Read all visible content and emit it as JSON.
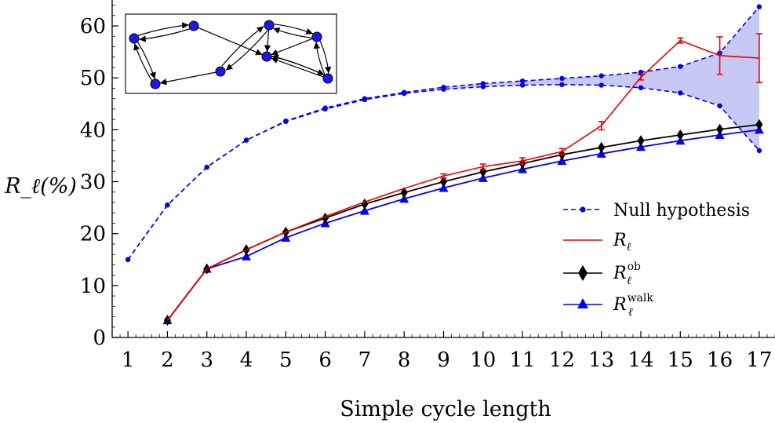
{
  "chart_data": {
    "type": "line",
    "xlabel": "Simple cycle length",
    "ylabel": "R_ℓ(%)",
    "xlim": [
      0.6,
      17.4
    ],
    "ylim": [
      0,
      65
    ],
    "x_ticks": [
      1,
      2,
      3,
      4,
      5,
      6,
      7,
      8,
      9,
      10,
      11,
      12,
      13,
      14,
      15,
      16,
      17
    ],
    "y_ticks": [
      0,
      10,
      20,
      30,
      40,
      50,
      60
    ],
    "legend_position": "right",
    "grid": false,
    "series": [
      {
        "name": "Null hypothesis",
        "style": "dashed",
        "marker": "dot",
        "color": "#0000ee",
        "band_upper": {
          "x": [
            1,
            2,
            3,
            4,
            5,
            6,
            7,
            8,
            9,
            10,
            11,
            12,
            13,
            14,
            15,
            16,
            17
          ],
          "y": [
            15.0,
            25.5,
            32.8,
            38.0,
            41.7,
            44.2,
            46.0,
            47.2,
            48.2,
            48.9,
            49.4,
            49.9,
            50.4,
            51.1,
            52.2,
            54.8,
            63.7
          ]
        },
        "band_lower": {
          "x": [
            1,
            2,
            3,
            4,
            5,
            6,
            7,
            8,
            9,
            10,
            11,
            12,
            13,
            14,
            15,
            16,
            17
          ],
          "y": [
            15.0,
            25.5,
            32.8,
            38.0,
            41.6,
            44.0,
            45.8,
            47.0,
            47.8,
            48.3,
            48.6,
            48.7,
            48.6,
            48.1,
            47.1,
            44.6,
            36.0
          ]
        },
        "fill": "#c8c8f5"
      },
      {
        "name": "R_ℓ",
        "color": "#ee0000",
        "marker": "none",
        "x": [
          2,
          3,
          4,
          5,
          6,
          7,
          8,
          9,
          10,
          11,
          12,
          13,
          14,
          15,
          16,
          17
        ],
        "y": [
          3.3,
          13.2,
          16.9,
          20.3,
          23.3,
          26.1,
          28.7,
          31.1,
          32.9,
          34.0,
          35.8,
          40.8,
          50.1,
          57.2,
          54.3,
          53.8
        ],
        "error": [
          0,
          0,
          0,
          0,
          0,
          0,
          0,
          0.4,
          0.5,
          0.6,
          0.6,
          0.8,
          0.5,
          0.5,
          3.6,
          4.7
        ]
      },
      {
        "name": "R_ℓ^ob",
        "color": "#000000",
        "marker": "diamond",
        "x": [
          2,
          3,
          4,
          5,
          6,
          7,
          8,
          9,
          10,
          11,
          12,
          13,
          14,
          15,
          16,
          17
        ],
        "y": [
          3.3,
          13.2,
          16.9,
          20.3,
          23.0,
          25.7,
          27.9,
          30.0,
          31.9,
          33.5,
          35.2,
          36.6,
          37.9,
          39.0,
          40.1,
          41.0
        ]
      },
      {
        "name": "R_ℓ^walk",
        "color": "#0000ee",
        "marker": "triangle",
        "x": [
          2,
          3,
          4,
          5,
          6,
          7,
          8,
          9,
          10,
          11,
          12,
          13,
          14,
          15,
          16,
          17
        ],
        "y": [
          3.3,
          13.2,
          15.6,
          19.2,
          22.0,
          24.4,
          26.7,
          28.8,
          30.7,
          32.4,
          34.0,
          35.4,
          36.7,
          37.9,
          39.0,
          40.0
        ]
      }
    ],
    "inset": {
      "type": "directed-graph",
      "node_color": "#1a1aee",
      "nodes": [
        "n1",
        "n2",
        "n3",
        "n4",
        "n5",
        "n6",
        "n7",
        "n8",
        "n9"
      ],
      "edges": [
        [
          "n1",
          "n2"
        ],
        [
          "n2",
          "n1"
        ],
        [
          "n1",
          "n3"
        ],
        [
          "n3",
          "n1"
        ],
        [
          "n4",
          "n3"
        ],
        [
          "n4",
          "n6"
        ],
        [
          "n6",
          "n4"
        ],
        [
          "n2",
          "n7"
        ],
        [
          "n6",
          "n7"
        ],
        [
          "n8",
          "n7"
        ],
        [
          "n7",
          "n8"
        ],
        [
          "n6",
          "n8"
        ],
        [
          "n8",
          "n6"
        ],
        [
          "n8",
          "n9"
        ],
        [
          "n9",
          "n8"
        ],
        [
          "n9",
          "n7"
        ],
        [
          "n7",
          "n9"
        ],
        [
          "n5",
          "n7"
        ],
        [
          "n5",
          "n6"
        ],
        [
          "n6",
          "n5"
        ]
      ]
    }
  },
  "legend": {
    "null_label": "Null hypothesis",
    "r_label": "R",
    "r_sub": "ℓ",
    "ob_label": "R",
    "ob_sub": "ℓ",
    "ob_sup": "ob",
    "walk_label": "R",
    "walk_sub": "ℓ",
    "walk_sup": "walk"
  }
}
